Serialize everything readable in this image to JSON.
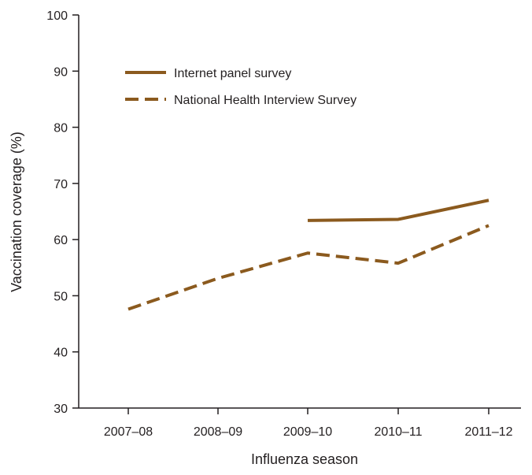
{
  "chart_data": {
    "type": "line",
    "title": "",
    "xlabel": "Influenza season",
    "ylabel": "Vaccination coverage (%)",
    "categories": [
      "2007–08",
      "2008–09",
      "2009–10",
      "2010–11",
      "2011–12"
    ],
    "ylim": [
      30,
      100
    ],
    "yticks": [
      30,
      40,
      50,
      60,
      70,
      80,
      90,
      100
    ],
    "grid": false,
    "legend_position": "top-left",
    "series": [
      {
        "name": "Internet panel survey",
        "style": "solid",
        "color": "#8b5a1e",
        "values": [
          null,
          null,
          63.4,
          63.6,
          67.0
        ]
      },
      {
        "name": "National Health Interview Survey",
        "style": "dashed",
        "color": "#8b5a1e",
        "values": [
          47.6,
          53.1,
          57.6,
          55.8,
          62.5
        ]
      }
    ]
  }
}
